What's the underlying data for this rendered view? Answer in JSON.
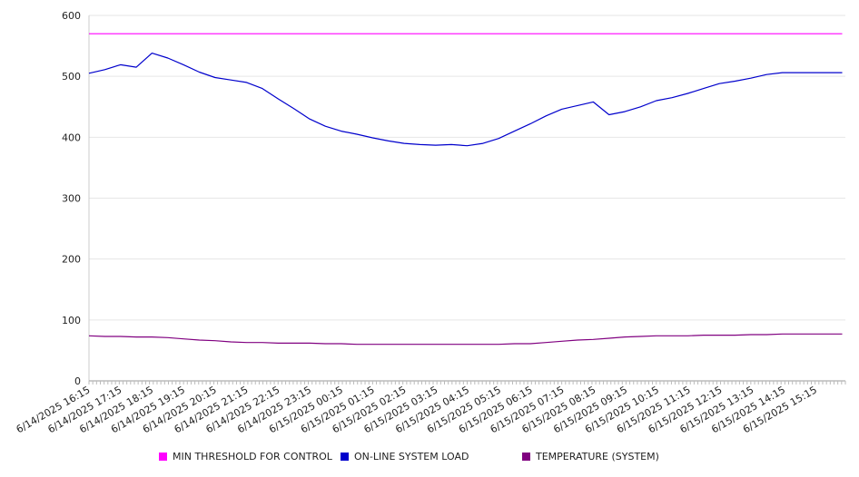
{
  "chart_data": {
    "type": "line",
    "title": "",
    "xlabel": "",
    "ylabel": "",
    "ylim": [
      0,
      600
    ],
    "yticks": [
      0,
      100,
      200,
      300,
      400,
      500,
      600
    ],
    "grid": true,
    "legend_position": "bottom",
    "x_tick_labels": [
      "6/14/2025 16:15",
      "6/14/2025 17:15",
      "6/14/2025 18:15",
      "6/14/2025 19:15",
      "6/14/2025 20:15",
      "6/14/2025 21:15",
      "6/14/2025 22:15",
      "6/14/2025 23:15",
      "6/15/2025 00:15",
      "6/15/2025 01:15",
      "6/15/2025 02:15",
      "6/15/2025 03:15",
      "6/15/2025 04:15",
      "6/15/2025 05:15",
      "6/15/2025 06:15",
      "6/15/2025 07:15",
      "6/15/2025 08:15",
      "6/15/2025 09:15",
      "6/15/2025 10:15",
      "6/15/2025 11:15",
      "6/15/2025 12:15",
      "6/15/2025 13:15",
      "6/15/2025 14:15",
      "6/15/2025 15:15"
    ],
    "x_hours": [
      0,
      0.5,
      1,
      1.5,
      2,
      2.5,
      3,
      3.5,
      4,
      4.5,
      5,
      5.5,
      6,
      6.5,
      7,
      7.5,
      8,
      8.5,
      9,
      9.5,
      10,
      10.5,
      11,
      11.5,
      12,
      12.5,
      13,
      13.5,
      14,
      14.5,
      15,
      15.5,
      16,
      16.5,
      17,
      17.5,
      18,
      18.5,
      19,
      19.5,
      20,
      20.5,
      21,
      21.5,
      22,
      22.5,
      23,
      23.5,
      23.9
    ],
    "series": [
      {
        "name": "MIN THRESHOLD FOR CONTROL",
        "color": "#ff00ff",
        "values": [
          570,
          570,
          570,
          570,
          570,
          570,
          570,
          570,
          570,
          570,
          570,
          570,
          570,
          570,
          570,
          570,
          570,
          570,
          570,
          570,
          570,
          570,
          570,
          570,
          570,
          570,
          570,
          570,
          570,
          570,
          570,
          570,
          570,
          570,
          570,
          570,
          570,
          570,
          570,
          570,
          570,
          570,
          570,
          570,
          570,
          570,
          570,
          570,
          570
        ]
      },
      {
        "name": "ON-LINE SYSTEM LOAD",
        "color": "#0000cc",
        "values": [
          505,
          511,
          519,
          515,
          538,
          530,
          519,
          507,
          498,
          494,
          490,
          480,
          463,
          447,
          430,
          418,
          410,
          405,
          399,
          394,
          390,
          388,
          387,
          388,
          386,
          390,
          398,
          410,
          422,
          435,
          446,
          452,
          458,
          437,
          442,
          450,
          460,
          465,
          472,
          480,
          488,
          492,
          497,
          503,
          506,
          506,
          506,
          506,
          506
        ]
      },
      {
        "name": "TEMPERATURE (SYSTEM)",
        "color": "#800080",
        "values": [
          74,
          73,
          73,
          72,
          72,
          71,
          69,
          67,
          66,
          64,
          63,
          63,
          62,
          62,
          62,
          61,
          61,
          60,
          60,
          60,
          60,
          60,
          60,
          60,
          60,
          60,
          60,
          61,
          61,
          63,
          65,
          67,
          68,
          70,
          72,
          73,
          74,
          74,
          74,
          75,
          75,
          75,
          76,
          76,
          77,
          77,
          77,
          77,
          77
        ]
      }
    ]
  }
}
